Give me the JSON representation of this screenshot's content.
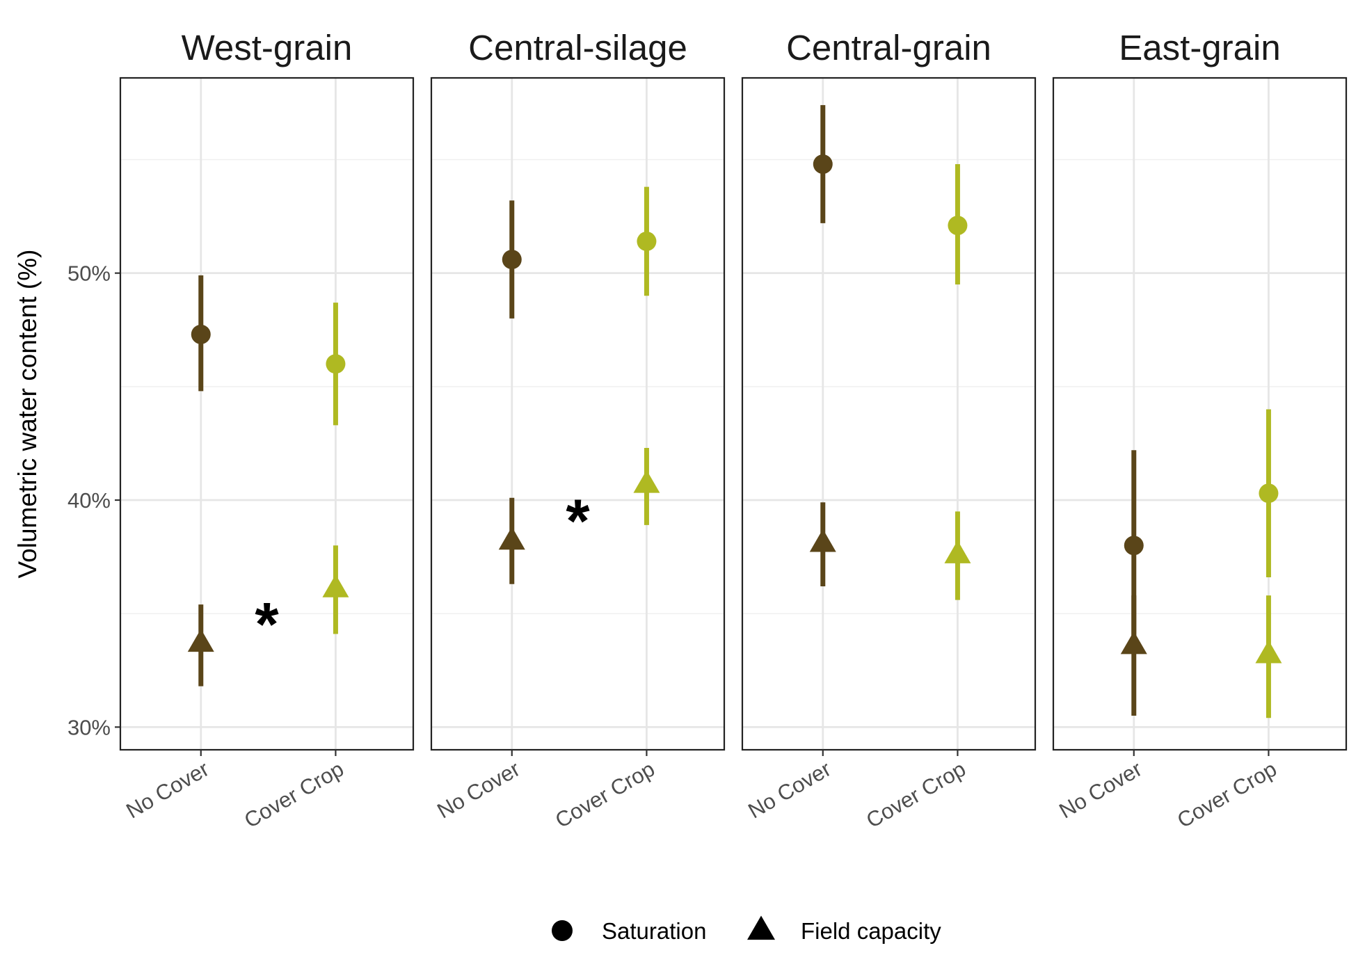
{
  "chart_data": {
    "type": "scatter",
    "subtype": "point-range (mean with error bars), faceted",
    "ylabel": "Volumetric water content (%)",
    "xlabel": "",
    "ylim": [
      29,
      58.6
    ],
    "y_ticks": [
      30,
      40,
      50
    ],
    "y_tick_labels": [
      "30%",
      "40%",
      "50%"
    ],
    "categories": [
      "No Cover",
      "Cover Crop"
    ],
    "grid": true,
    "legend_position": "bottom",
    "legend": [
      {
        "name": "Saturation",
        "shape": "circle"
      },
      {
        "name": "Field capacity",
        "shape": "triangle"
      }
    ],
    "colors": {
      "No Cover": "#5a4519",
      "Cover Crop": "#afb922"
    },
    "panels": [
      {
        "title": "West-grain",
        "significance_marker": "*",
        "series": [
          {
            "name": "Saturation",
            "shape": "circle",
            "values": [
              47.3,
              46.0
            ],
            "lower": [
              44.8,
              43.3
            ],
            "upper": [
              49.9,
              48.7
            ]
          },
          {
            "name": "Field capacity",
            "shape": "triangle",
            "values": [
              33.7,
              36.1
            ],
            "lower": [
              31.8,
              34.1
            ],
            "upper": [
              35.4,
              38.0
            ]
          }
        ]
      },
      {
        "title": "Central-silage",
        "significance_marker": "*",
        "series": [
          {
            "name": "Saturation",
            "shape": "circle",
            "values": [
              50.6,
              51.4
            ],
            "lower": [
              48.0,
              49.0
            ],
            "upper": [
              53.2,
              53.8
            ]
          },
          {
            "name": "Field capacity",
            "shape": "triangle",
            "values": [
              38.2,
              40.7
            ],
            "lower": [
              36.3,
              38.9
            ],
            "upper": [
              40.1,
              42.3
            ]
          }
        ]
      },
      {
        "title": "Central-grain",
        "significance_marker": "",
        "series": [
          {
            "name": "Saturation",
            "shape": "circle",
            "values": [
              54.8,
              52.1
            ],
            "lower": [
              52.2,
              49.5
            ],
            "upper": [
              57.4,
              54.8
            ]
          },
          {
            "name": "Field capacity",
            "shape": "triangle",
            "values": [
              38.1,
              37.6
            ],
            "lower": [
              36.2,
              35.6
            ],
            "upper": [
              39.9,
              39.5
            ]
          }
        ]
      },
      {
        "title": "East-grain",
        "significance_marker": "",
        "series": [
          {
            "name": "Saturation",
            "shape": "circle",
            "values": [
              38.0,
              40.3
            ],
            "lower": [
              33.8,
              36.6
            ],
            "upper": [
              42.2,
              44.0
            ]
          },
          {
            "name": "Field capacity",
            "shape": "triangle",
            "values": [
              33.6,
              33.2
            ],
            "lower": [
              30.5,
              30.4
            ],
            "upper": [
              35.8,
              35.8
            ]
          }
        ]
      }
    ]
  }
}
